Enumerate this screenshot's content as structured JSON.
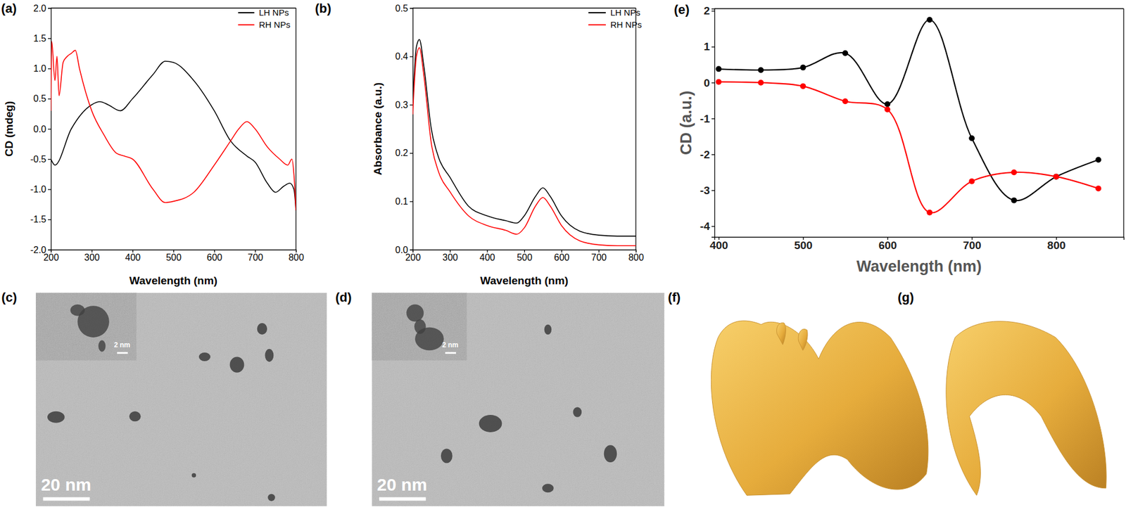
{
  "chart_data": [
    {
      "type": "line",
      "panel_label": "(a)",
      "x_label": "Wavelength (nm)",
      "y_label": "CD (mdeg)",
      "xlim": [
        200,
        800
      ],
      "ylim": [
        -2.0,
        2.0
      ],
      "xticks": [
        200,
        300,
        400,
        500,
        600,
        700,
        800
      ],
      "yticks": [
        {
          "value": -2.0,
          "label": "-2.0"
        },
        {
          "value": -1.5,
          "label": "-1.5"
        },
        {
          "value": -1.0,
          "label": "-1.0"
        },
        {
          "value": -0.5,
          "label": "-0.5"
        },
        {
          "value": 0.0,
          "label": "0.0"
        },
        {
          "value": 0.5,
          "label": "0.5"
        },
        {
          "value": 1.0,
          "label": "1.0"
        },
        {
          "value": 1.5,
          "label": "1.5"
        },
        {
          "value": 2.0,
          "label": "2.0"
        }
      ],
      "grid": false,
      "legend": "upper right",
      "series": [
        {
          "name": "LH NPs",
          "color": "#000000",
          "x": [
            200,
            210,
            250,
            300,
            320,
            340,
            370,
            400,
            450,
            480,
            500,
            550,
            600,
            640,
            680,
            700,
            730,
            750,
            770,
            785,
            795,
            800
          ],
          "values": [
            -0.5,
            -0.6,
            0.0,
            0.4,
            0.45,
            0.4,
            0.3,
            0.5,
            0.9,
            1.12,
            1.1,
            0.8,
            0.3,
            -0.2,
            -0.45,
            -0.55,
            -0.9,
            -1.05,
            -0.95,
            -0.9,
            -1.0,
            -1.35
          ]
        },
        {
          "name": "RH NPs",
          "color": "#ff0000",
          "x": [
            200,
            202,
            210,
            215,
            220,
            230,
            240,
            250,
            260,
            270,
            300,
            330,
            360,
            380,
            400,
            450,
            480,
            500,
            550,
            600,
            640,
            660,
            680,
            700,
            730,
            760,
            780,
            790,
            795,
            800
          ],
          "values": [
            0.3,
            1.45,
            0.8,
            1.2,
            0.55,
            1.1,
            1.2,
            1.25,
            1.3,
            1.0,
            0.3,
            -0.1,
            -0.4,
            -0.45,
            -0.5,
            -1.0,
            -1.22,
            -1.2,
            -1.05,
            -0.6,
            -0.2,
            0.0,
            0.12,
            0.0,
            -0.3,
            -0.5,
            -0.6,
            -0.5,
            -0.75,
            -1.35
          ]
        }
      ]
    },
    {
      "type": "line",
      "panel_label": "(b)",
      "x_label": "Wavelength (nm)",
      "y_label": "Absorbance (a.u.)",
      "xlim": [
        200,
        800
      ],
      "ylim": [
        0.0,
        0.5
      ],
      "xticks": [
        200,
        300,
        400,
        500,
        600,
        700,
        800
      ],
      "yticks": [
        {
          "value": 0.0,
          "label": "0.0"
        },
        0.1,
        0.2,
        0.3,
        0.4,
        0.5
      ],
      "grid": false,
      "legend": "upper right",
      "series": [
        {
          "name": "LH NPs",
          "color": "#000000",
          "x": [
            200,
            210,
            218,
            230,
            250,
            270,
            300,
            350,
            400,
            450,
            480,
            500,
            530,
            550,
            570,
            600,
            650,
            700,
            750,
            800
          ],
          "values": [
            0.3,
            0.42,
            0.435,
            0.38,
            0.25,
            0.19,
            0.15,
            0.09,
            0.07,
            0.06,
            0.055,
            0.07,
            0.11,
            0.128,
            0.11,
            0.07,
            0.038,
            0.03,
            0.028,
            0.028
          ]
        },
        {
          "name": "RH NPs",
          "color": "#ff0000",
          "x": [
            200,
            210,
            218,
            230,
            250,
            270,
            300,
            350,
            400,
            450,
            480,
            500,
            530,
            550,
            570,
            600,
            650,
            700,
            750,
            800
          ],
          "values": [
            0.28,
            0.4,
            0.418,
            0.36,
            0.22,
            0.16,
            0.12,
            0.07,
            0.05,
            0.04,
            0.032,
            0.045,
            0.09,
            0.108,
            0.09,
            0.05,
            0.018,
            0.01,
            0.008,
            0.008
          ]
        }
      ]
    },
    {
      "type": "line",
      "panel_label": "(e)",
      "x_label": "Wavelength (nm)",
      "y_label": "CD (a.u.)",
      "xlim": [
        395,
        880
      ],
      "ylim": [
        -4.3,
        2.06
      ],
      "xticks": [
        400,
        500,
        600,
        700,
        800
      ],
      "yticks": [
        -4,
        -3,
        -2,
        -1,
        0,
        1,
        2
      ],
      "grid": false,
      "marker": "circle",
      "series": [
        {
          "color": "#000000",
          "x": [
            400,
            450,
            500,
            550,
            600,
            650,
            700,
            750,
            800,
            850
          ],
          "values": [
            0.38,
            0.35,
            0.42,
            0.82,
            -0.6,
            1.75,
            -1.55,
            -3.28,
            -2.62,
            -2.15
          ]
        },
        {
          "color": "#ff0000",
          "x": [
            400,
            450,
            500,
            550,
            600,
            650,
            700,
            750,
            800,
            850
          ],
          "values": [
            0.02,
            0.0,
            -0.1,
            -0.52,
            -0.75,
            -3.62,
            -2.75,
            -2.5,
            -2.62,
            -2.95
          ]
        }
      ]
    }
  ],
  "images": [
    {
      "panel_label": "(c)",
      "scale_bar": "20 nm",
      "inset_scale_bar": "2 nm"
    },
    {
      "panel_label": "(d)",
      "scale_bar": "20 nm",
      "inset_scale_bar": "2 nm"
    }
  ],
  "renders": [
    {
      "panel_label": "(f)"
    },
    {
      "panel_label": "(g)"
    }
  ]
}
